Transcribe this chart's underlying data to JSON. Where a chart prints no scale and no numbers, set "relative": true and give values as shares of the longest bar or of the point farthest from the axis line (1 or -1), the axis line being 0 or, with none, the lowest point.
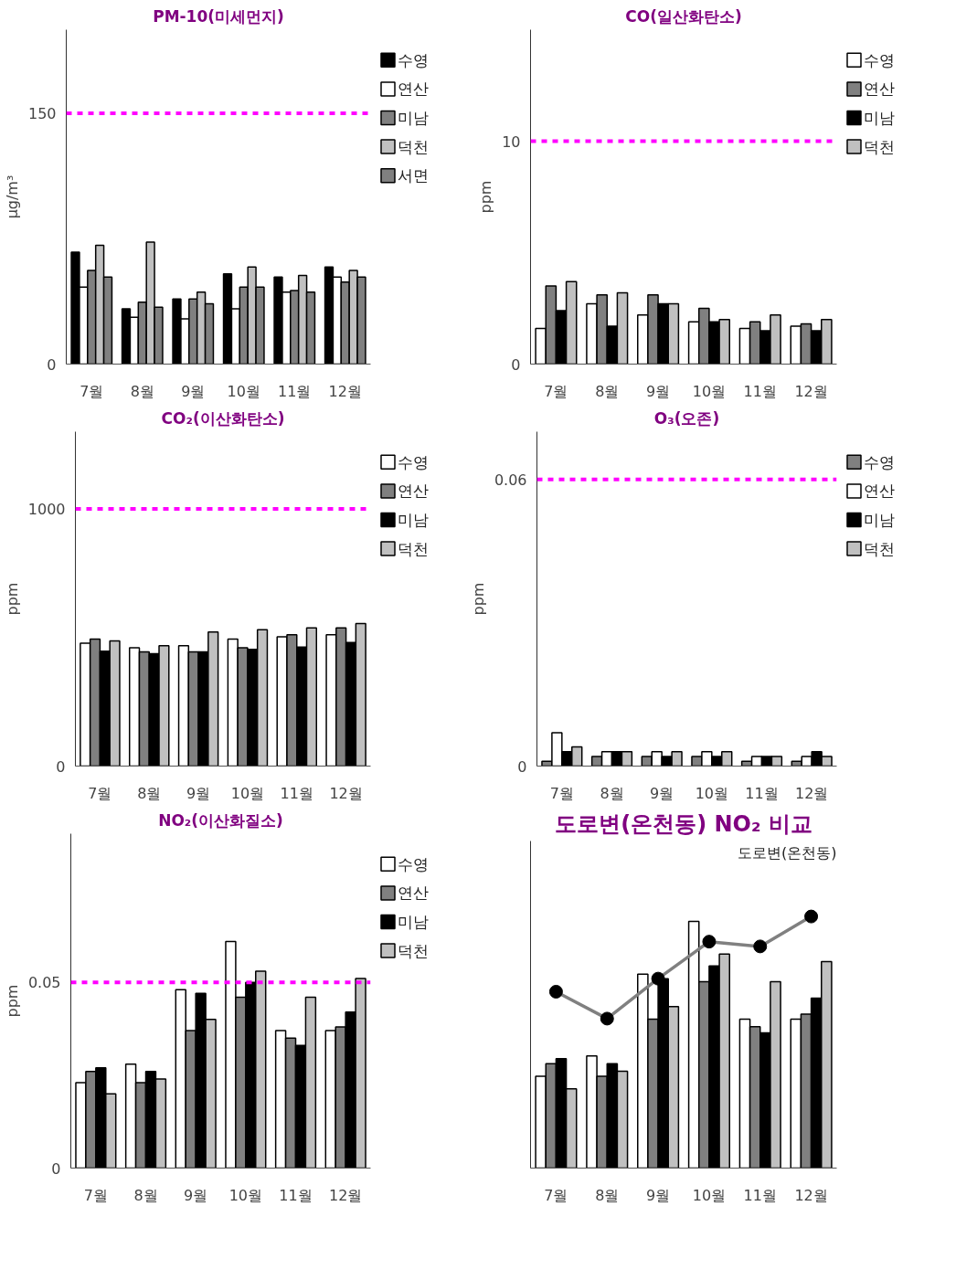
{
  "chart_data": [
    {
      "type": "bar",
      "title": "PM-10(미세먼지)",
      "ylabel": "μg/m³",
      "categories": [
        "7월",
        "8월",
        "9월",
        "10월",
        "11월",
        "12월"
      ],
      "ylim": [
        0,
        200
      ],
      "yticks": [
        0,
        150
      ],
      "legend": "top right",
      "series": [
        {
          "name": "수영",
          "color": "#000000",
          "values": [
            67,
            33,
            39,
            54,
            52,
            58
          ]
        },
        {
          "name": "연산",
          "color": "#ffffff",
          "values": [
            46,
            28,
            27,
            33,
            43,
            52
          ]
        },
        {
          "name": "미남",
          "color": "#808080",
          "values": [
            56,
            37,
            39,
            46,
            44,
            49
          ]
        },
        {
          "name": "덕천",
          "color": "#c0c0c0",
          "values": [
            71,
            73,
            43,
            58,
            53,
            56
          ]
        },
        {
          "name": "서면",
          "color": "#808080",
          "values": [
            52,
            34,
            36,
            46,
            43,
            52
          ]
        }
      ],
      "ref_lines": [
        {
          "axis": "y",
          "value": 150,
          "color": "#ff00ff",
          "line_style": "dashed"
        }
      ]
    },
    {
      "type": "bar",
      "title": "CO(일산화탄소)",
      "ylabel": "ppm",
      "categories": [
        "7월",
        "8월",
        "9월",
        "10월",
        "11월",
        "12월"
      ],
      "ylim": [
        0,
        15
      ],
      "yticks": [
        0,
        10
      ],
      "legend": "top right",
      "series": [
        {
          "name": "수영",
          "color": "#ffffff",
          "values": [
            1.6,
            2.7,
            2.2,
            1.9,
            1.6,
            1.7
          ]
        },
        {
          "name": "연산",
          "color": "#808080",
          "values": [
            3.5,
            3.1,
            3.1,
            2.5,
            1.9,
            1.8
          ]
        },
        {
          "name": "미남",
          "color": "#000000",
          "values": [
            2.4,
            1.7,
            2.7,
            1.9,
            1.5,
            1.5
          ]
        },
        {
          "name": "덕천",
          "color": "#c0c0c0",
          "values": [
            3.7,
            3.2,
            2.7,
            2.0,
            2.2,
            2.0
          ]
        }
      ],
      "ref_lines": [
        {
          "axis": "y",
          "value": 10,
          "color": "#ff00ff",
          "line_style": "dashed"
        }
      ]
    },
    {
      "type": "bar",
      "title": "CO₂(이산화탄소)",
      "ylabel": "ppm",
      "categories": [
        "7월",
        "8월",
        "9월",
        "10월",
        "11월",
        "12월"
      ],
      "ylim": [
        0,
        1300
      ],
      "yticks": [
        0,
        1000
      ],
      "legend": "top right",
      "series": [
        {
          "name": "수영",
          "color": "#ffffff",
          "values": [
            478,
            460,
            468,
            494,
            503,
            511
          ]
        },
        {
          "name": "연산",
          "color": "#808080",
          "values": [
            494,
            444,
            444,
            460,
            511,
            537
          ]
        },
        {
          "name": "미남",
          "color": "#000000",
          "values": [
            447,
            437,
            444,
            454,
            463,
            480
          ]
        },
        {
          "name": "덕천",
          "color": "#c0c0c0",
          "values": [
            487,
            468,
            521,
            530,
            537,
            554
          ]
        }
      ],
      "ref_lines": [
        {
          "axis": "y",
          "value": 1000,
          "color": "#ff00ff",
          "line_style": "dashed"
        }
      ]
    },
    {
      "type": "bar",
      "title": "O₃(오존)",
      "ylabel": "ppm",
      "categories": [
        "7월",
        "8월",
        "9월",
        "10월",
        "11월",
        "12월"
      ],
      "ylim": [
        0,
        0.07
      ],
      "yticks": [
        0,
        0.06
      ],
      "legend": "top right",
      "series": [
        {
          "name": "수영",
          "color": "#808080",
          "values": [
            0.001,
            0.002,
            0.002,
            0.002,
            0.001,
            0.001
          ]
        },
        {
          "name": "연산",
          "color": "#ffffff",
          "values": [
            0.007,
            0.003,
            0.003,
            0.003,
            0.002,
            0.002
          ]
        },
        {
          "name": "미남",
          "color": "#000000",
          "values": [
            0.003,
            0.003,
            0.002,
            0.002,
            0.002,
            0.003
          ]
        },
        {
          "name": "덕천",
          "color": "#c0c0c0",
          "values": [
            0.004,
            0.003,
            0.003,
            0.003,
            0.002,
            0.002
          ]
        }
      ],
      "ref_lines": [
        {
          "axis": "y",
          "value": 0.06,
          "color": "#ff00ff",
          "line_style": "dashed"
        }
      ]
    },
    {
      "type": "bar",
      "title": "NO₂(이산화질소)",
      "ylabel": "ppm",
      "categories": [
        "7월",
        "8월",
        "9월",
        "10월",
        "11월",
        "12월"
      ],
      "ylim": [
        0,
        0.09
      ],
      "yticks": [
        0,
        0.05
      ],
      "legend": "top right",
      "series": [
        {
          "name": "수영",
          "color": "#ffffff",
          "values": [
            0.023,
            0.028,
            0.048,
            0.061,
            0.037,
            0.037
          ]
        },
        {
          "name": "연산",
          "color": "#808080",
          "values": [
            0.026,
            0.023,
            0.037,
            0.046,
            0.035,
            0.038
          ]
        },
        {
          "name": "미남",
          "color": "#000000",
          "values": [
            0.027,
            0.026,
            0.047,
            0.05,
            0.033,
            0.042
          ]
        },
        {
          "name": "덕천",
          "color": "#c0c0c0",
          "values": [
            0.02,
            0.024,
            0.04,
            0.053,
            0.046,
            0.051
          ]
        }
      ],
      "ref_lines": [
        {
          "axis": "y",
          "value": 0.05,
          "color": "#ff00ff",
          "line_style": "dashed"
        }
      ]
    },
    {
      "type": "bar",
      "title": "도로변(온천동) NO₂ 비교",
      "categories": [
        "7월",
        "8월",
        "9월",
        "10월",
        "11월",
        "12월"
      ],
      "relative": true,
      "tick_labels": "x",
      "marker": "circle",
      "series": [
        {
          "color": "#ffffff",
          "values": [
            0.365,
            0.446,
            0.771,
            0.98,
            0.592,
            0.592
          ]
        },
        {
          "color": "#808080",
          "values": [
            0.415,
            0.365,
            0.592,
            0.741,
            0.562,
            0.612
          ]
        },
        {
          "color": "#000000",
          "values": [
            0.435,
            0.415,
            0.753,
            0.803,
            0.537,
            0.675
          ]
        },
        {
          "color": "#c0c0c0",
          "values": [
            0.315,
            0.385,
            0.642,
            0.851,
            0.741,
            0.821
          ]
        },
        {
          "type": "line",
          "name": "도로변(온천동)",
          "color": "#808080",
          "values": [
            0.701,
            0.594,
            0.753,
            0.9,
            0.881,
            1
          ]
        }
      ]
    }
  ]
}
